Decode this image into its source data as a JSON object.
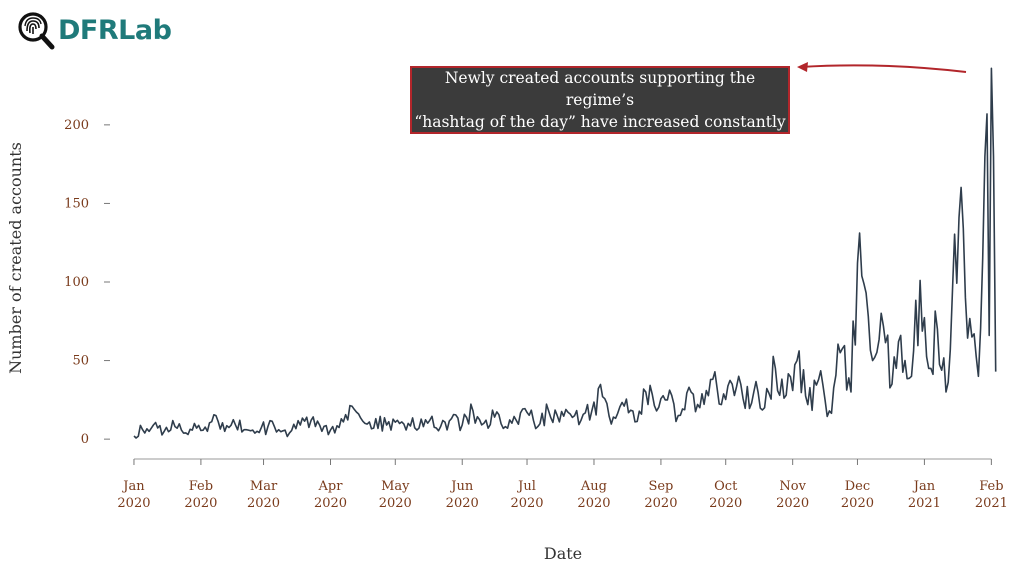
{
  "logo": {
    "text": "DFRLab",
    "icon": "fingerprint-magnifier-icon"
  },
  "annotation": {
    "line1": "Newly created accounts supporting the regime’s",
    "line2": "“hashtag of the day” have increased constantly",
    "border_color": "#b2262b",
    "arrow_color": "#b2262b"
  },
  "chart_data": {
    "type": "line",
    "title": "",
    "xlabel": "Date",
    "ylabel": "Number of created accounts",
    "ylim": [
      -12,
      240
    ],
    "y_ticks": [
      0,
      50,
      100,
      150,
      200
    ],
    "x_ticks": [
      {
        "date": "2020-01-01",
        "month": "Jan",
        "year": "2020"
      },
      {
        "date": "2020-02-01",
        "month": "Feb",
        "year": "2020"
      },
      {
        "date": "2020-03-01",
        "month": "Mar",
        "year": "2020"
      },
      {
        "date": "2020-04-01",
        "month": "Apr",
        "year": "2020"
      },
      {
        "date": "2020-05-01",
        "month": "May",
        "year": "2020"
      },
      {
        "date": "2020-06-01",
        "month": "Jun",
        "year": "2020"
      },
      {
        "date": "2020-07-01",
        "month": "Jul",
        "year": "2020"
      },
      {
        "date": "2020-08-01",
        "month": "Aug",
        "year": "2020"
      },
      {
        "date": "2020-09-01",
        "month": "Sep",
        "year": "2020"
      },
      {
        "date": "2020-10-01",
        "month": "Oct",
        "year": "2020"
      },
      {
        "date": "2020-11-01",
        "month": "Nov",
        "year": "2020"
      },
      {
        "date": "2020-12-01",
        "month": "Dec",
        "year": "2020"
      },
      {
        "date": "2021-01-01",
        "month": "Jan",
        "year": "2021"
      },
      {
        "date": "2021-02-01",
        "month": "Feb",
        "year": "2021"
      }
    ],
    "x_range": [
      "2019-12-26",
      "2021-02-05"
    ],
    "line_color": "#2f3d4c",
    "tick_color": "#7a3b1c",
    "grid": false,
    "series": [
      {
        "points": [
          [
            "2020-01-01",
            2
          ],
          [
            "2020-01-05",
            6
          ],
          [
            "2020-01-10",
            9
          ],
          [
            "2020-01-15",
            5
          ],
          [
            "2020-01-20",
            8
          ],
          [
            "2020-01-25",
            4
          ],
          [
            "2020-01-30",
            7
          ],
          [
            "2020-02-04",
            5
          ],
          [
            "2020-02-08",
            15
          ],
          [
            "2020-02-12",
            5
          ],
          [
            "2020-02-17",
            9
          ],
          [
            "2020-02-22",
            6
          ],
          [
            "2020-02-27",
            5
          ],
          [
            "2020-03-03",
            8
          ],
          [
            "2020-03-08",
            6
          ],
          [
            "2020-03-13",
            4
          ],
          [
            "2020-03-18",
            9
          ],
          [
            "2020-03-23",
            12
          ],
          [
            "2020-03-28",
            5
          ],
          [
            "2020-04-02",
            8
          ],
          [
            "2020-04-07",
            11
          ],
          [
            "2020-04-12",
            19
          ],
          [
            "2020-04-17",
            10
          ],
          [
            "2020-04-22",
            13
          ],
          [
            "2020-04-27",
            9
          ],
          [
            "2020-05-02",
            12
          ],
          [
            "2020-05-07",
            10
          ],
          [
            "2020-05-12",
            7
          ],
          [
            "2020-05-17",
            12
          ],
          [
            "2020-05-22",
            8
          ],
          [
            "2020-05-27",
            13
          ],
          [
            "2020-06-01",
            9
          ],
          [
            "2020-06-06",
            18
          ],
          [
            "2020-06-11",
            10
          ],
          [
            "2020-06-16",
            14
          ],
          [
            "2020-06-21",
            8
          ],
          [
            "2020-06-26",
            12
          ],
          [
            "2020-07-01",
            17
          ],
          [
            "2020-07-06",
            8
          ],
          [
            "2020-07-11",
            18
          ],
          [
            "2020-07-16",
            11
          ],
          [
            "2020-07-21",
            16
          ],
          [
            "2020-07-26",
            12
          ],
          [
            "2020-07-31",
            18
          ],
          [
            "2020-08-05",
            27
          ],
          [
            "2020-08-10",
            14
          ],
          [
            "2020-08-15",
            21
          ],
          [
            "2020-08-20",
            11
          ],
          [
            "2020-08-25",
            30
          ],
          [
            "2020-08-30",
            18
          ],
          [
            "2020-09-04",
            25
          ],
          [
            "2020-09-09",
            15
          ],
          [
            "2020-09-14",
            33
          ],
          [
            "2020-09-19",
            20
          ],
          [
            "2020-09-24",
            38
          ],
          [
            "2020-09-29",
            22
          ],
          [
            "2020-10-04",
            35
          ],
          [
            "2020-10-09",
            26
          ],
          [
            "2020-10-14",
            30
          ],
          [
            "2020-10-19",
            20
          ],
          [
            "2020-10-24",
            45
          ],
          [
            "2020-10-29",
            28
          ],
          [
            "2020-11-03",
            50
          ],
          [
            "2020-11-08",
            22
          ],
          [
            "2020-11-13",
            38
          ],
          [
            "2020-11-18",
            18
          ],
          [
            "2020-11-23",
            55
          ],
          [
            "2020-11-28",
            30
          ],
          [
            "2020-12-01",
            112
          ],
          [
            "2020-12-04",
            99
          ],
          [
            "2020-12-08",
            50
          ],
          [
            "2020-12-13",
            72
          ],
          [
            "2020-12-17",
            35
          ],
          [
            "2020-12-21",
            66
          ],
          [
            "2020-12-26",
            40
          ],
          [
            "2020-12-30",
            101
          ],
          [
            "2021-01-03",
            45
          ],
          [
            "2021-01-07",
            70
          ],
          [
            "2021-01-11",
            30
          ],
          [
            "2021-01-14",
            95
          ],
          [
            "2021-01-17",
            141
          ],
          [
            "2021-01-20",
            90
          ],
          [
            "2021-01-23",
            65
          ],
          [
            "2021-01-26",
            40
          ],
          [
            "2021-01-28",
            115
          ],
          [
            "2021-01-29",
            180
          ],
          [
            "2021-01-30",
            207
          ],
          [
            "2021-01-31",
            66
          ],
          [
            "2021-02-01",
            236
          ],
          [
            "2021-02-02",
            180
          ],
          [
            "2021-02-03",
            43
          ]
        ]
      }
    ]
  }
}
